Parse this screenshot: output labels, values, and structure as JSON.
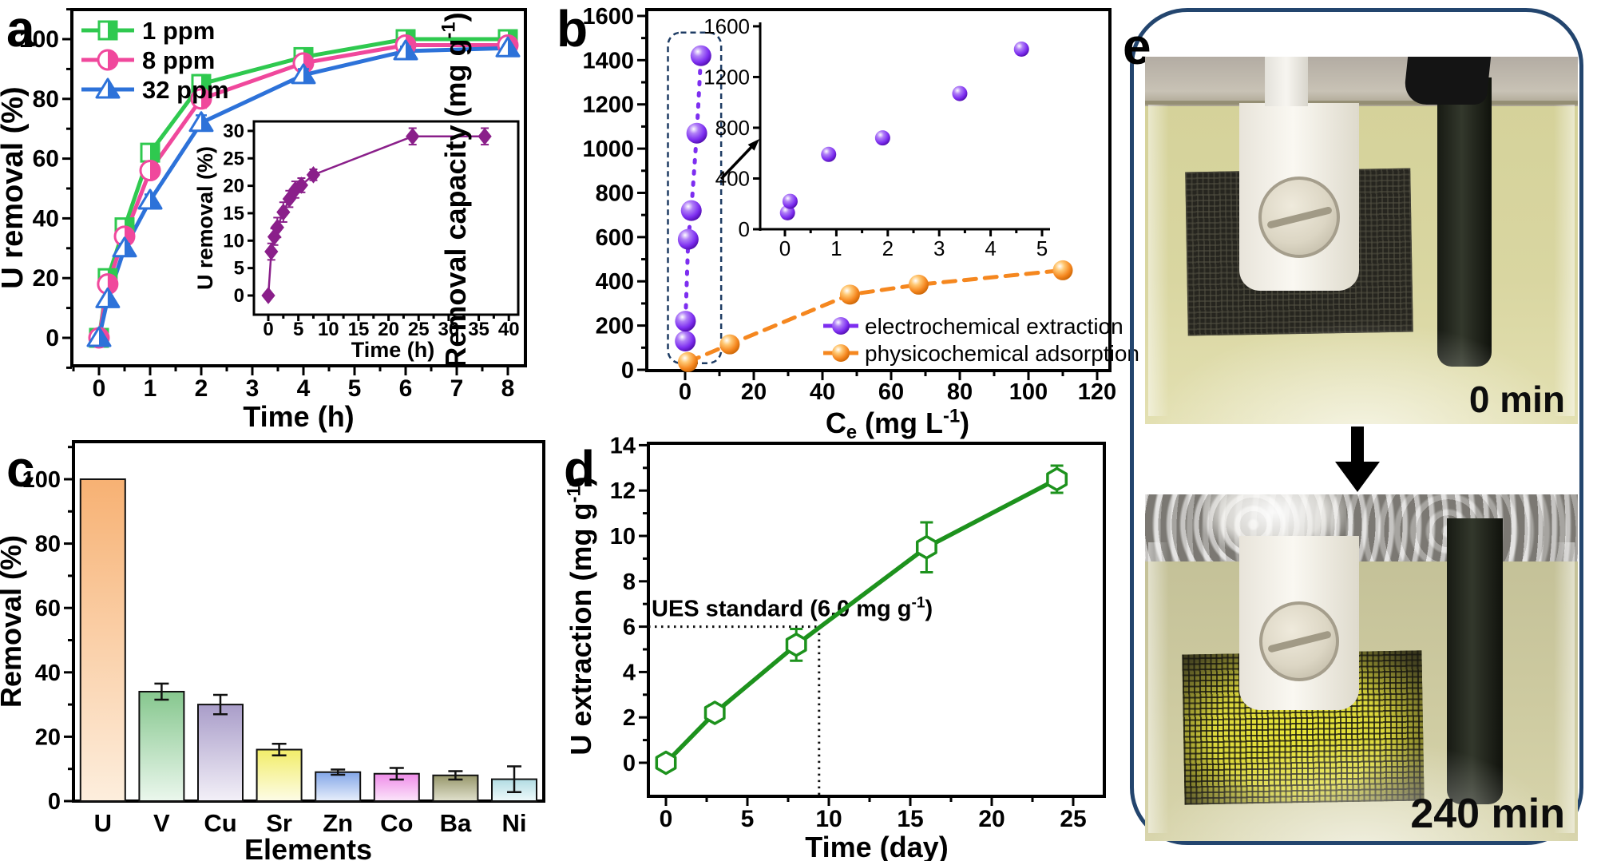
{
  "figure": {
    "background": "#ffffff"
  },
  "chart_data": [
    {
      "id": "a",
      "type": "line",
      "panel_label": "a",
      "xlabel": "Time (h)",
      "ylabel": "U removal (%)",
      "xticks": [
        0,
        1,
        2,
        3,
        4,
        5,
        6,
        7,
        8
      ],
      "yticks": [
        0,
        20,
        40,
        60,
        80,
        100
      ],
      "xlim": [
        -0.55,
        8.4
      ],
      "ylim": [
        -10,
        110
      ],
      "legend_position": "top-left",
      "grid": false,
      "series": [
        {
          "name": "1 ppm",
          "color": "#2fc94f",
          "marker": "half-square",
          "x": [
            0,
            0.17,
            0.5,
            1,
            2,
            4,
            6,
            8
          ],
          "y": [
            0,
            20,
            37,
            62,
            85,
            94,
            100,
            100
          ],
          "yerr": [
            0.5,
            1.5,
            1.5,
            2,
            3,
            2,
            1.5,
            1
          ]
        },
        {
          "name": "8 ppm",
          "color": "#f0489c",
          "marker": "half-circle",
          "x": [
            0,
            0.17,
            0.5,
            1,
            2,
            4,
            6,
            8
          ],
          "y": [
            0,
            18,
            34,
            56,
            80,
            92,
            98,
            98
          ],
          "yerr": [
            0.5,
            1.5,
            1.5,
            2,
            3,
            2,
            1.5,
            1
          ]
        },
        {
          "name": "32 ppm",
          "color": "#2d72d9",
          "marker": "half-triangle",
          "x": [
            0,
            0.17,
            0.5,
            1,
            2,
            4,
            6,
            8
          ],
          "y": [
            0,
            13,
            30,
            46,
            72,
            88,
            96,
            97
          ],
          "yerr": [
            0.5,
            1,
            1.5,
            2,
            2.5,
            2,
            1.5,
            1
          ]
        }
      ],
      "inset": {
        "xlabel": "Time (h)",
        "ylabel": "U removal (%)",
        "xticks": [
          0,
          5,
          10,
          15,
          20,
          25,
          30,
          35,
          40
        ],
        "yticks": [
          0,
          5,
          10,
          15,
          20,
          25,
          30
        ],
        "series": [
          {
            "name": "U removal",
            "color": "#8a1f8a",
            "marker": "diamond",
            "x": [
              0,
              0.5,
              1,
              1.5,
              2.5,
              3.5,
              4.5,
              5.5,
              7.5,
              24,
              36
            ],
            "y": [
              0,
              8,
              10.7,
              12.4,
              15.2,
              17.6,
              19.3,
              20.1,
              22,
              29,
              29
            ],
            "yerr": [
              0.3,
              1.5,
              1.5,
              1.8,
              1.8,
              1.5,
              1.5,
              1.3,
              1,
              1.5,
              1.5
            ]
          }
        ]
      }
    },
    {
      "id": "b",
      "type": "scatter",
      "panel_label": "b",
      "xlabel": "C_e_ (mg L^-1^)",
      "ylabel": "Removal capacity (mg g^-1^)",
      "xticks": [
        0,
        20,
        40,
        60,
        80,
        100,
        120
      ],
      "yticks": [
        0,
        200,
        400,
        600,
        800,
        1000,
        1200,
        1400,
        1600
      ],
      "xlim": [
        -11,
        123
      ],
      "ylim": [
        0,
        1630
      ],
      "legend_position": "right-middle",
      "grid": false,
      "series": [
        {
          "name": "electrochemical extraction",
          "color": "#7d2ef0",
          "marker": "ball",
          "line": "dashed",
          "x": [
            0.05,
            0.1,
            0.9,
            1.8,
            3.4,
            4.6
          ],
          "y": [
            130,
            220,
            590,
            720,
            1070,
            1420
          ]
        },
        {
          "name": "physicochemical adsorption",
          "color": "#f5871f",
          "marker": "ball",
          "line": "dashed",
          "x": [
            0.8,
            13,
            48,
            68,
            110
          ],
          "y": [
            35,
            115,
            340,
            385,
            450
          ]
        }
      ],
      "highlight_box": {
        "x_range": [
          -5,
          10.5
        ],
        "y_range": [
          30,
          1525
        ],
        "color": "#1e3c64"
      },
      "inset": {
        "xticks": [
          0,
          1,
          2,
          3,
          4,
          5
        ],
        "yticks": [
          0,
          400,
          800,
          1200,
          1600
        ],
        "series": [
          {
            "name": "electrochemical extraction",
            "color": "#7d2ef0",
            "marker": "ball",
            "x": [
              0.05,
              0.1,
              0.85,
              1.9,
              3.4,
              4.6
            ],
            "y": [
              130,
              220,
              590,
              720,
              1070,
              1420
            ]
          }
        ]
      }
    },
    {
      "id": "c",
      "type": "bar",
      "panel_label": "c",
      "xlabel": "Elements",
      "ylabel": "Removal (%)",
      "categories": [
        "U",
        "V",
        "Cu",
        "Sr",
        "Zn",
        "Co",
        "Ba",
        "Ni"
      ],
      "values": [
        100,
        34,
        30,
        16,
        9,
        8.5,
        8,
        6.8
      ],
      "errors": [
        0,
        2.5,
        3,
        1.8,
        0.8,
        1.8,
        1.3,
        4
      ],
      "yticks": [
        0,
        20,
        40,
        60,
        80,
        100
      ],
      "ylim": [
        0,
        112
      ],
      "grid": false,
      "bar_colors_top": [
        "#f7b173",
        "#86c78e",
        "#a99dc9",
        "#f2ed69",
        "#83a6e8",
        "#ef8ce9",
        "#97976b",
        "#b2dce3"
      ],
      "bar_colors_bottom": [
        "#fdeedd",
        "#ebf7ed",
        "#f3f0f8",
        "#fdfce7",
        "#e8effb",
        "#fbe6fa",
        "#e1e1cd",
        "#effafb"
      ]
    },
    {
      "id": "d",
      "type": "line",
      "panel_label": "d",
      "xlabel": "Time (day)",
      "ylabel": "U extraction (mg g^-1^)",
      "xticks": [
        0,
        5,
        10,
        15,
        20,
        25
      ],
      "yticks": [
        0,
        2,
        4,
        6,
        8,
        10,
        12,
        14
      ],
      "xlim": [
        -1.1,
        27
      ],
      "ylim": [
        -1.5,
        14.2
      ],
      "grid": false,
      "series": [
        {
          "name": "U extraction",
          "color": "#1d921d",
          "marker": "hexagon",
          "x": [
            0,
            3,
            8,
            16,
            24
          ],
          "y": [
            0,
            2.2,
            5.2,
            9.5,
            12.5
          ],
          "yerr": [
            0.3,
            0.35,
            0.7,
            1.1,
            0.6
          ]
        }
      ],
      "annotation": {
        "text": "UES standard (6.0 mg g^-1^)",
        "y_value": 6,
        "x_intersect": 9.4,
        "line_style": "dotted"
      }
    }
  ],
  "panel_e": {
    "label": "e",
    "border_color": "#23456e",
    "photos": [
      {
        "time_label": "0 min",
        "description": "beaker with pale yellow uranium solution, black mesh electrode and graphite rod"
      },
      {
        "time_label": "240 min",
        "description": "beaker after electrolysis, yellow uranium deposit on mesh electrode"
      }
    ]
  }
}
